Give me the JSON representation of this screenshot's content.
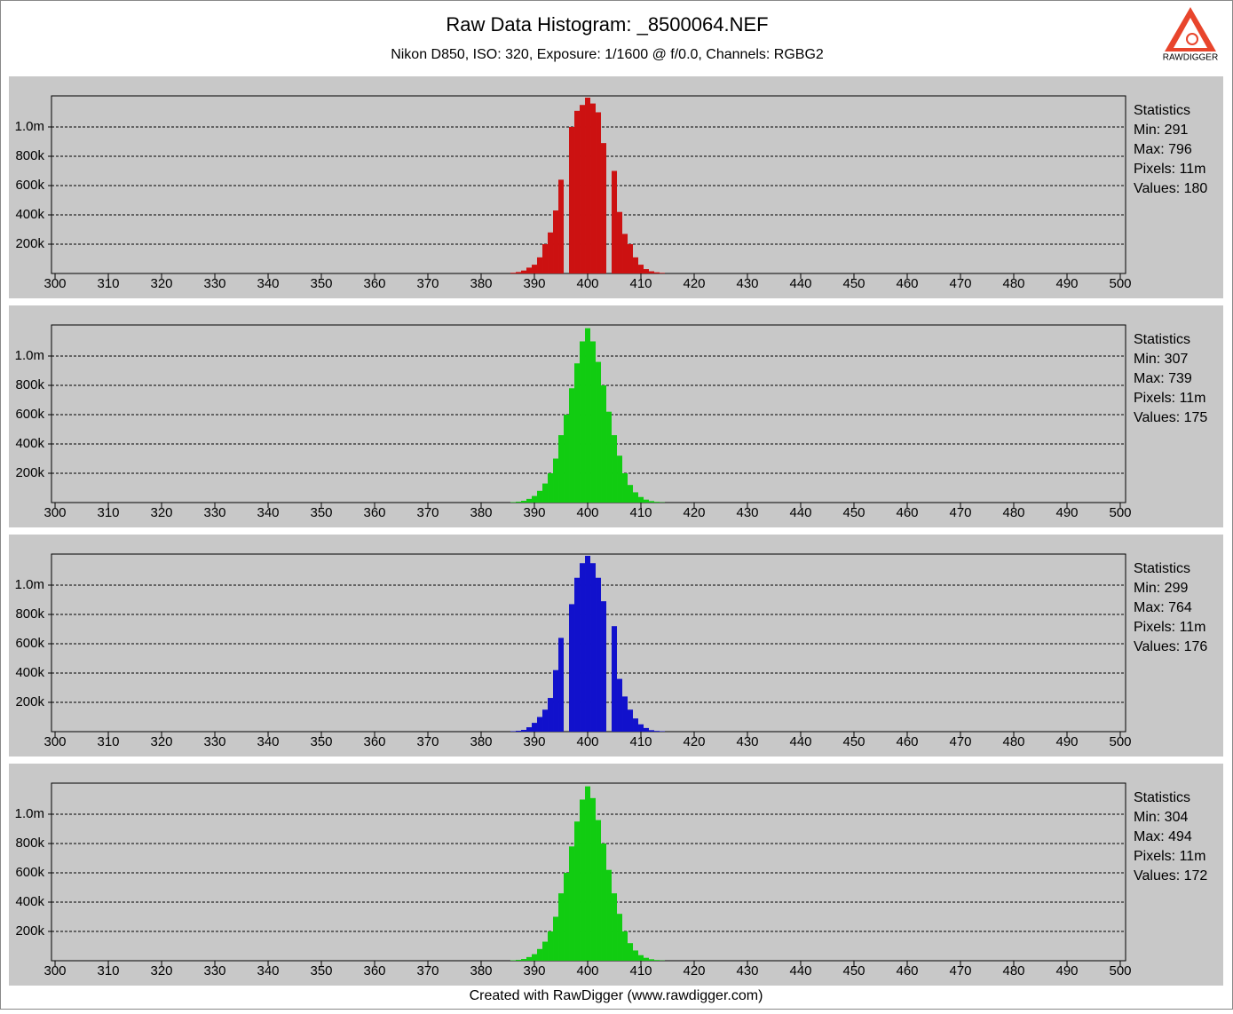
{
  "title": "Raw Data Histogram: _8500064.NEF",
  "subtitle": "Nikon D850, ISO: 320, Exposure: 1/1600 @ f/0.0, Channels: RGBG2",
  "logo": "RAWDIGGER",
  "footer": "Created with RawDigger (www.rawdigger.com)",
  "chart_data": [
    {
      "type": "histogram",
      "color": "#cc1111",
      "bins": [
        385.5,
        386.5,
        387.5,
        388.5,
        389.5,
        390.5,
        391.5,
        392.5,
        393.5,
        394.5,
        395.5,
        396.5,
        397.5,
        398.5,
        399.5,
        400.5,
        401.5,
        402.5,
        403.5,
        404.5,
        405.5,
        406.5,
        407.5,
        408.5,
        409.5,
        410.5,
        411.5,
        412.5,
        413.5,
        414.5
      ],
      "values": [
        5000,
        10000,
        20000,
        40000,
        60000,
        110000,
        200000,
        280000,
        430000,
        640000,
        0,
        1000000,
        1110000,
        1150000,
        1200000,
        1160000,
        1100000,
        890000,
        0,
        700000,
        420000,
        270000,
        200000,
        110000,
        60000,
        30000,
        15000,
        8000,
        4000
      ],
      "xlim": [
        299.33,
        501
      ],
      "xticks": [
        300,
        310,
        320,
        330,
        340,
        350,
        360,
        370,
        380,
        390,
        400,
        410,
        420,
        430,
        440,
        450,
        460,
        470,
        480,
        490,
        500
      ],
      "ylim": [
        0,
        1212000
      ],
      "yticks": [
        {
          "value": 200000,
          "label": "200k"
        },
        {
          "value": 400000,
          "label": "400k"
        },
        {
          "value": 600000,
          "label": "600k"
        },
        {
          "value": 800000,
          "label": "800k"
        },
        {
          "value": 1000000,
          "label": "1.0m"
        }
      ],
      "grid": true,
      "stats": [
        "Statistics",
        "Min: 291",
        "Max: 796",
        "Pixels: 11m",
        "Values: 180"
      ]
    },
    {
      "type": "histogram",
      "color": "#11cc11",
      "bins": [
        385.5,
        386.5,
        387.5,
        388.5,
        389.5,
        390.5,
        391.5,
        392.5,
        393.5,
        394.5,
        395.5,
        396.5,
        397.5,
        398.5,
        399.5,
        400.5,
        401.5,
        402.5,
        403.5,
        404.5,
        405.5,
        406.5,
        407.5,
        408.5,
        409.5,
        410.5,
        411.5,
        412.5,
        413.5,
        414.5
      ],
      "values": [
        3000,
        6000,
        12000,
        25000,
        45000,
        80000,
        130000,
        200000,
        300000,
        460000,
        600000,
        780000,
        950000,
        1100000,
        1190000,
        1100000,
        960000,
        800000,
        620000,
        460000,
        320000,
        200000,
        120000,
        70000,
        38000,
        20000,
        10000,
        5000,
        2000
      ],
      "xlim": [
        299.33,
        501
      ],
      "xticks": [
        300,
        310,
        320,
        330,
        340,
        350,
        360,
        370,
        380,
        390,
        400,
        410,
        420,
        430,
        440,
        450,
        460,
        470,
        480,
        490,
        500
      ],
      "ylim": [
        0,
        1212000
      ],
      "yticks": [
        {
          "value": 200000,
          "label": "200k"
        },
        {
          "value": 400000,
          "label": "400k"
        },
        {
          "value": 600000,
          "label": "600k"
        },
        {
          "value": 800000,
          "label": "800k"
        },
        {
          "value": 1000000,
          "label": "1.0m"
        }
      ],
      "grid": true,
      "stats": [
        "Statistics",
        "Min: 307",
        "Max: 739",
        "Pixels: 11m",
        "Values: 175"
      ]
    },
    {
      "type": "histogram",
      "color": "#1111cc",
      "bins": [
        385.5,
        386.5,
        387.5,
        388.5,
        389.5,
        390.5,
        391.5,
        392.5,
        393.5,
        394.5,
        395.5,
        396.5,
        397.5,
        398.5,
        399.5,
        400.5,
        401.5,
        402.5,
        403.5,
        404.5,
        405.5,
        406.5,
        407.5,
        408.5,
        409.5,
        410.5,
        411.5,
        412.5,
        413.5,
        414.5
      ],
      "values": [
        3000,
        6000,
        12000,
        30000,
        60000,
        100000,
        150000,
        230000,
        420000,
        640000,
        0,
        870000,
        1050000,
        1150000,
        1200000,
        1150000,
        1050000,
        890000,
        0,
        720000,
        360000,
        240000,
        150000,
        90000,
        50000,
        25000,
        10000,
        5000,
        3000
      ],
      "xlim": [
        299.33,
        501
      ],
      "xticks": [
        300,
        310,
        320,
        330,
        340,
        350,
        360,
        370,
        380,
        390,
        400,
        410,
        420,
        430,
        440,
        450,
        460,
        470,
        480,
        490,
        500
      ],
      "ylim": [
        0,
        1212000
      ],
      "yticks": [
        {
          "value": 200000,
          "label": "200k"
        },
        {
          "value": 400000,
          "label": "400k"
        },
        {
          "value": 600000,
          "label": "600k"
        },
        {
          "value": 800000,
          "label": "800k"
        },
        {
          "value": 1000000,
          "label": "1.0m"
        }
      ],
      "grid": true,
      "stats": [
        "Statistics",
        "Min: 299",
        "Max: 764",
        "Pixels: 11m",
        "Values: 176"
      ]
    },
    {
      "type": "histogram",
      "color": "#11cc11",
      "bins": [
        385.5,
        386.5,
        387.5,
        388.5,
        389.5,
        390.5,
        391.5,
        392.5,
        393.5,
        394.5,
        395.5,
        396.5,
        397.5,
        398.5,
        399.5,
        400.5,
        401.5,
        402.5,
        403.5,
        404.5,
        405.5,
        406.5,
        407.5,
        408.5,
        409.5,
        410.5,
        411.5,
        412.5,
        413.5,
        414.5
      ],
      "values": [
        3000,
        6000,
        12000,
        25000,
        45000,
        80000,
        130000,
        200000,
        300000,
        460000,
        600000,
        780000,
        950000,
        1100000,
        1190000,
        1110000,
        960000,
        800000,
        620000,
        460000,
        320000,
        200000,
        120000,
        70000,
        38000,
        20000,
        10000,
        5000,
        2000
      ],
      "xlim": [
        299.33,
        501
      ],
      "xticks": [
        300,
        310,
        320,
        330,
        340,
        350,
        360,
        370,
        380,
        390,
        400,
        410,
        420,
        430,
        440,
        450,
        460,
        470,
        480,
        490,
        500
      ],
      "ylim": [
        0,
        1212000
      ],
      "yticks": [
        {
          "value": 200000,
          "label": "200k"
        },
        {
          "value": 400000,
          "label": "400k"
        },
        {
          "value": 600000,
          "label": "600k"
        },
        {
          "value": 800000,
          "label": "800k"
        },
        {
          "value": 1000000,
          "label": "1.0m"
        }
      ],
      "grid": true,
      "stats": [
        "Statistics",
        "Min: 304",
        "Max: 494",
        "Pixels: 11m",
        "Values: 172"
      ]
    }
  ]
}
